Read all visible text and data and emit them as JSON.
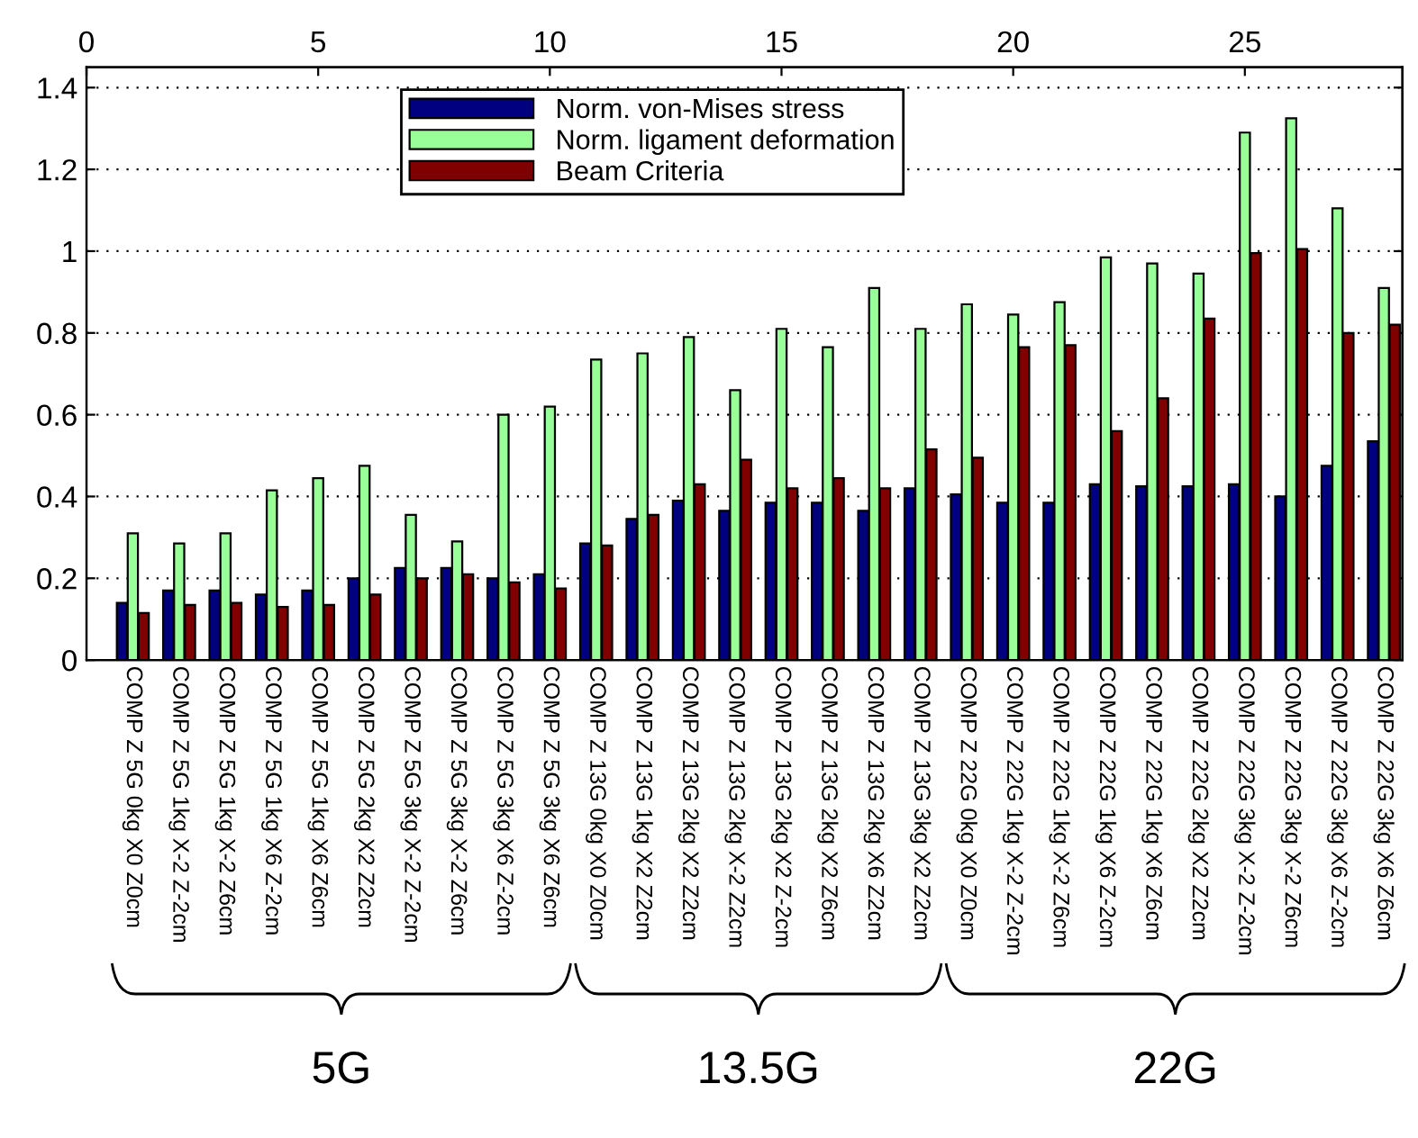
{
  "chart_data": {
    "type": "bar",
    "categories": [
      "COMP Z 5G 0kg X0 Z0cm",
      "COMP Z 5G 1kg X-2 Z-2cm",
      "COMP Z 5G 1kg X-2 Z6cm",
      "COMP Z 5G 1kg X6 Z-2cm",
      "COMP Z 5G 1kg X6 Z6cm",
      "COMP Z 5G 2kg X2 Z2cm",
      "COMP Z 5G 3kg X-2 Z-2cm",
      "COMP Z 5G 3kg X-2 Z6cm",
      "COMP Z 5G 3kg X6 Z-2cm",
      "COMP Z 5G 3kg X6 Z6cm",
      "COMP Z 13G 0kg X0 Z0cm",
      "COMP Z 13G 1kg X2 Z2cm",
      "COMP Z 13G 2kg X2 Z2cm",
      "COMP Z 13G 2kg X-2 Z2cm",
      "COMP Z 13G 2kg X2 Z-2cm",
      "COMP Z 13G 2kg X2 Z6cm",
      "COMP Z 13G 2kg X6 Z2cm",
      "COMP Z 13G 3kg X2 Z2cm",
      "COMP Z 22G 0kg X0 Z0cm",
      "COMP Z 22G 1kg X-2 Z-2cm",
      "COMP Z 22G 1kg X-2 Z6cm",
      "COMP Z 22G 1kg X6 Z-2cm",
      "COMP Z 22G 1kg X6 Z6cm",
      "COMP Z 22G 2kg X2 Z2cm",
      "COMP Z 22G 3kg X-2 Z-2cm",
      "COMP Z 22G 3kg X-2 Z6cm",
      "COMP Z 22G 3kg X6 Z-2cm",
      "COMP Z 22G 3kg X6 Z6cm"
    ],
    "series": [
      {
        "name": "Norm. von-Mises stress",
        "color": "#000080",
        "values": [
          0.14,
          0.17,
          0.17,
          0.16,
          0.17,
          0.2,
          0.225,
          0.225,
          0.2,
          0.21,
          0.285,
          0.345,
          0.39,
          0.365,
          0.385,
          0.385,
          0.365,
          0.42,
          0.405,
          0.385,
          0.385,
          0.43,
          0.425,
          0.425,
          0.43,
          0.4,
          0.475,
          0.535
        ]
      },
      {
        "name": "Norm. ligament deformation",
        "color": "#99ff99",
        "values": [
          0.31,
          0.285,
          0.31,
          0.415,
          0.445,
          0.475,
          0.355,
          0.29,
          0.6,
          0.62,
          0.735,
          0.75,
          0.79,
          0.66,
          0.81,
          0.765,
          0.91,
          0.81,
          0.87,
          0.845,
          0.875,
          0.985,
          0.97,
          0.945,
          1.29,
          1.325,
          1.105,
          0.91
        ]
      },
      {
        "name": "Beam Criteria",
        "color": "#800000",
        "values": [
          0.115,
          0.135,
          0.14,
          0.13,
          0.135,
          0.16,
          0.2,
          0.21,
          0.19,
          0.175,
          0.28,
          0.355,
          0.43,
          0.49,
          0.42,
          0.445,
          0.42,
          0.515,
          0.495,
          0.765,
          0.77,
          0.56,
          0.64,
          0.835,
          0.995,
          1.005,
          0.8,
          0.82
        ]
      }
    ],
    "x2lim": [
      0,
      28.4
    ],
    "x2ticks": [
      0,
      5,
      10,
      15,
      20,
      25
    ],
    "ylim": [
      0,
      1.45
    ],
    "yticks": [
      0,
      0.2,
      0.4,
      0.6,
      0.8,
      1,
      1.2,
      1.4
    ],
    "grid": "y",
    "legend": "top",
    "annotations": [
      "5G",
      "13.5G",
      "22G"
    ]
  }
}
